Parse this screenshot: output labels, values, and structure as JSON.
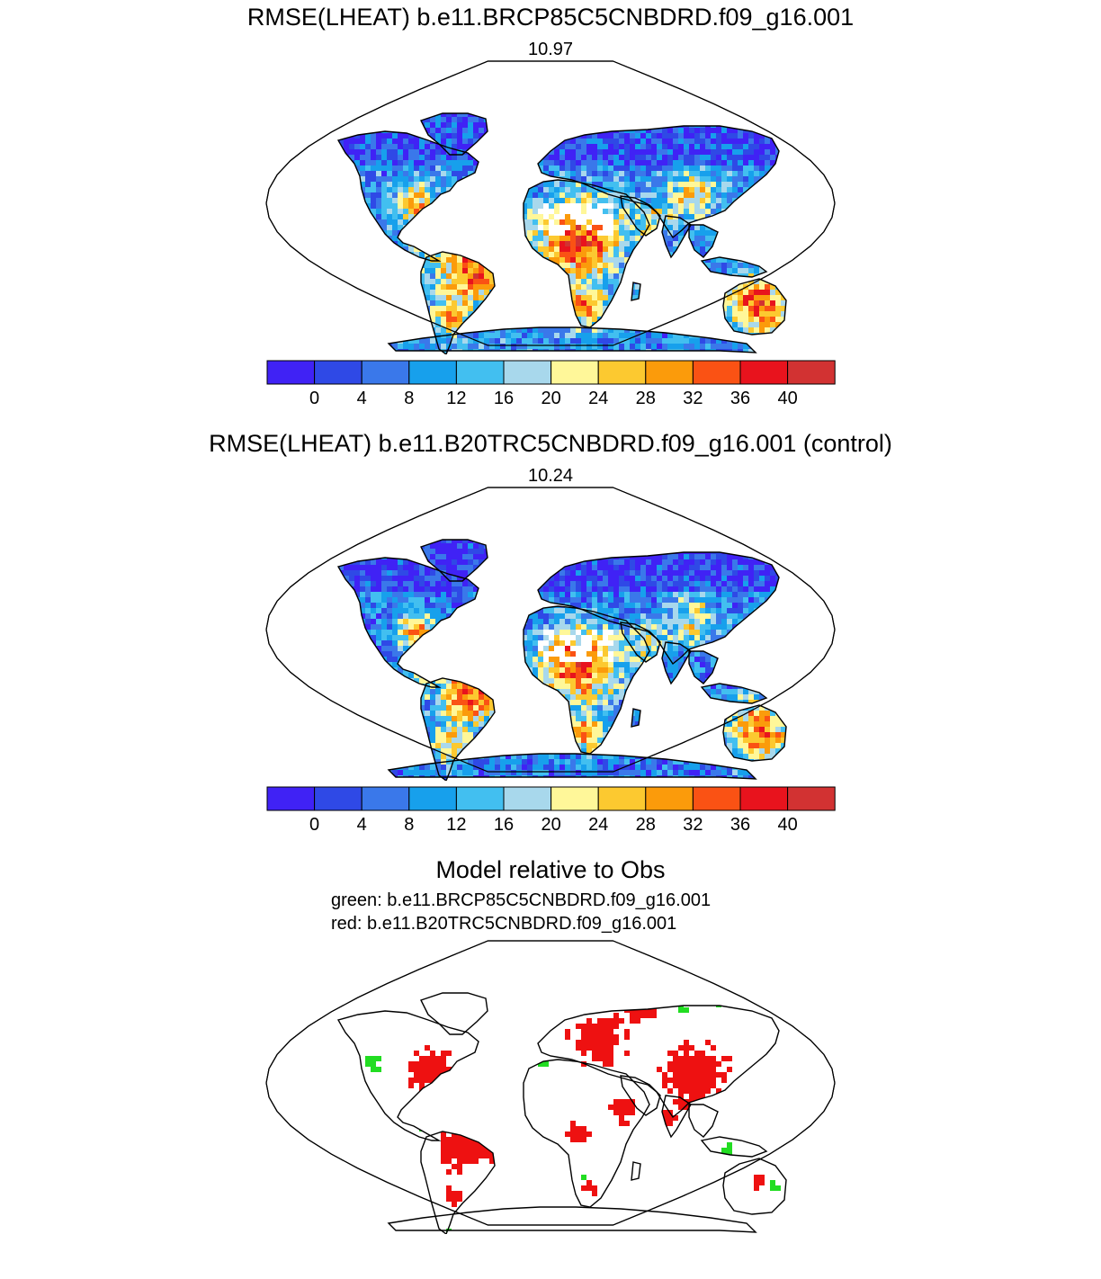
{
  "panels": [
    {
      "title": "RMSE(LHEAT) b.e11.BRCP85C5CNBDRD.f09_g16.001",
      "value": "10.97"
    },
    {
      "title": "RMSE(LHEAT) b.e11.B20TRC5CNBDRD.f09_g16.001 (control)",
      "value": "10.24"
    }
  ],
  "colorbar": {
    "colors": [
      "#4022f5",
      "#2f49e6",
      "#3a78ea",
      "#17a0ec",
      "#42bff0",
      "#a8d8ec",
      "#fff799",
      "#fcc930",
      "#fb9b0b",
      "#fa5214",
      "#e8131d",
      "#d23232"
    ],
    "tick_labels": [
      "0",
      "4",
      "8",
      "12",
      "16",
      "20",
      "24",
      "28",
      "32",
      "36",
      "40"
    ]
  },
  "difference": {
    "title": "Model relative to Obs",
    "green_label": "green: b.e11.BRCP85C5CNBDRD.f09_g16.001",
    "red_label": "red: b.e11.B20TRC5CNBDRD.f09_g16.001",
    "green_color": "#22dd22",
    "red_color": "#ee1111"
  }
}
